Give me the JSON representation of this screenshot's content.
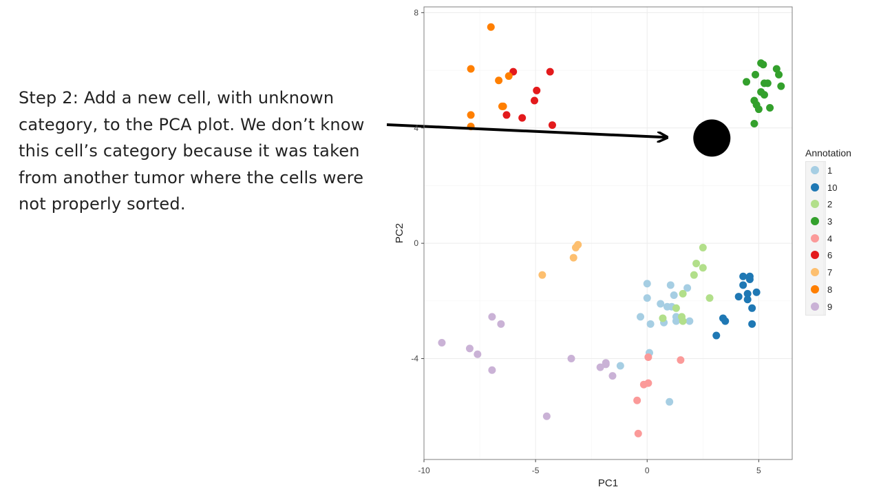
{
  "slide": {
    "step_text": "Step 2: Add a new cell, with unknown category, to the PCA plot. We don’t know this cell’s category because it was taken from another tumor where the cells were not properly sorted."
  },
  "chart_data": {
    "type": "scatter",
    "xlabel": "PC1",
    "ylabel": "PC2",
    "xlim": [
      -10,
      6.5
    ],
    "ylim": [
      -7.5,
      8.2
    ],
    "x_ticks": [
      -10,
      -5,
      0,
      5
    ],
    "y_ticks": [
      -4,
      0,
      4,
      8
    ],
    "grid": true,
    "legend_title": "Annotation",
    "legend_position": "right",
    "series": [
      {
        "name": "1",
        "color": "#a6cee3",
        "points": [
          [
            0,
            -1.4
          ],
          [
            0,
            -1.9
          ],
          [
            0.6,
            -2.1
          ],
          [
            0.9,
            -2.2
          ],
          [
            1.1,
            -2.2
          ],
          [
            1.05,
            -1.45
          ],
          [
            1.2,
            -1.8
          ],
          [
            1.8,
            -1.55
          ],
          [
            -0.3,
            -2.55
          ],
          [
            0.15,
            -2.8
          ],
          [
            0.75,
            -2.75
          ],
          [
            1.3,
            -2.55
          ],
          [
            1.3,
            -2.7
          ],
          [
            1.9,
            -2.7
          ],
          [
            0.1,
            -3.8
          ],
          [
            -1.2,
            -4.25
          ],
          [
            1.0,
            -5.5
          ]
        ]
      },
      {
        "name": "10",
        "color": "#1f78b4",
        "points": [
          [
            4.3,
            -1.15
          ],
          [
            4.6,
            -1.15
          ],
          [
            4.6,
            -1.25
          ],
          [
            4.3,
            -1.45
          ],
          [
            4.5,
            -1.75
          ],
          [
            4.5,
            -1.95
          ],
          [
            4.9,
            -1.7
          ],
          [
            4.1,
            -1.85
          ],
          [
            4.7,
            -2.25
          ],
          [
            3.4,
            -2.6
          ],
          [
            3.5,
            -2.7
          ],
          [
            4.7,
            -2.8
          ],
          [
            3.1,
            -3.2
          ]
        ]
      },
      {
        "name": "2",
        "color": "#b2df8a",
        "points": [
          [
            2.5,
            -0.15
          ],
          [
            2.2,
            -0.7
          ],
          [
            2.5,
            -0.85
          ],
          [
            2.1,
            -1.1
          ],
          [
            1.6,
            -1.75
          ],
          [
            2.8,
            -1.9
          ],
          [
            1.3,
            -2.25
          ],
          [
            1.55,
            -2.55
          ],
          [
            1.6,
            -2.7
          ],
          [
            0.7,
            -2.6
          ]
        ]
      },
      {
        "name": "3",
        "color": "#33a02c",
        "points": [
          [
            5.1,
            6.25
          ],
          [
            5.2,
            6.2
          ],
          [
            5.8,
            6.05
          ],
          [
            5.9,
            5.85
          ],
          [
            4.85,
            5.85
          ],
          [
            4.45,
            5.6
          ],
          [
            5.25,
            5.55
          ],
          [
            5.4,
            5.55
          ],
          [
            6.0,
            5.45
          ],
          [
            5.1,
            5.25
          ],
          [
            5.25,
            5.15
          ],
          [
            4.8,
            4.95
          ],
          [
            4.9,
            4.8
          ],
          [
            5.0,
            4.65
          ],
          [
            5.5,
            4.7
          ],
          [
            4.8,
            4.15
          ]
        ]
      },
      {
        "name": "4",
        "color": "#fb9a99",
        "points": [
          [
            0.05,
            -3.95
          ],
          [
            1.5,
            -4.05
          ],
          [
            0.05,
            -4.85
          ],
          [
            -0.15,
            -4.9
          ],
          [
            -0.45,
            -5.45
          ],
          [
            -0.4,
            -6.6
          ]
        ]
      },
      {
        "name": "6",
        "color": "#e31a1c",
        "points": [
          [
            -6.0,
            5.95
          ],
          [
            -4.35,
            5.95
          ],
          [
            -4.95,
            5.3
          ],
          [
            -5.05,
            4.95
          ],
          [
            -6.3,
            4.45
          ],
          [
            -5.6,
            4.35
          ],
          [
            -4.25,
            4.1
          ]
        ]
      },
      {
        "name": "7",
        "color": "#fdbf6f",
        "points": [
          [
            -3.1,
            -0.05
          ],
          [
            -3.2,
            -0.15
          ],
          [
            -3.3,
            -0.5
          ],
          [
            -4.7,
            -1.1
          ]
        ]
      },
      {
        "name": "8",
        "color": "#ff7f00",
        "points": [
          [
            -7.0,
            7.5
          ],
          [
            -7.9,
            6.05
          ],
          [
            -6.2,
            5.8
          ],
          [
            -6.65,
            5.65
          ],
          [
            -6.5,
            4.75
          ],
          [
            -6.45,
            4.75
          ],
          [
            -7.9,
            4.45
          ],
          [
            -7.9,
            4.05
          ]
        ]
      },
      {
        "name": "9",
        "color": "#cab2d6",
        "points": [
          [
            -9.2,
            -3.45
          ],
          [
            -7.95,
            -3.65
          ],
          [
            -7.6,
            -3.85
          ],
          [
            -6.95,
            -2.55
          ],
          [
            -6.55,
            -2.8
          ],
          [
            -6.95,
            -4.4
          ],
          [
            -3.4,
            -4.0
          ],
          [
            -1.85,
            -4.15
          ],
          [
            -1.85,
            -4.2
          ],
          [
            -2.1,
            -4.3
          ],
          [
            -1.55,
            -4.6
          ],
          [
            -4.5,
            -6.0
          ]
        ]
      }
    ],
    "new_cell": {
      "x": 2.9,
      "y": 3.65
    }
  }
}
